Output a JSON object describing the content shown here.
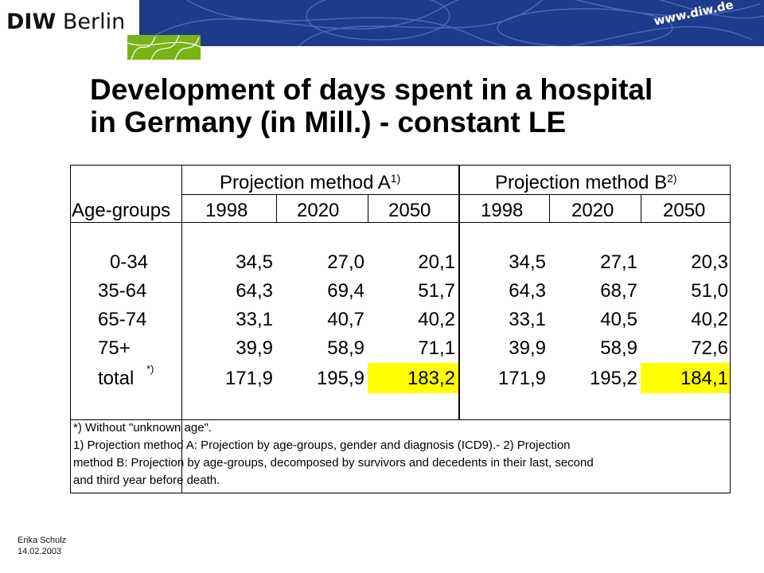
{
  "brand": {
    "logo_bold": "DIW",
    "logo_rest": " Berlin",
    "url": "www.diw.de"
  },
  "title": {
    "line1": "Development of days spent in a hospital",
    "line2": "in Germany (in Mill.) - constant LE"
  },
  "table": {
    "method_a": {
      "label": "Projection method A",
      "sup": "1)"
    },
    "method_b": {
      "label": "Projection method B",
      "sup": "2)"
    },
    "row_header": "Age-groups",
    "years": [
      "1998",
      "2020",
      "2050",
      "1998",
      "2020",
      "2050"
    ],
    "rows": [
      {
        "label": "0-34",
        "values": [
          "34,5",
          "27,0",
          "20,1",
          "34,5",
          "27,1",
          "20,3"
        ]
      },
      {
        "label": "35-64",
        "values": [
          "64,3",
          "69,4",
          "51,7",
          "64,3",
          "68,7",
          "51,0"
        ]
      },
      {
        "label": "65-74",
        "values": [
          "33,1",
          "40,7",
          "40,2",
          "33,1",
          "40,5",
          "40,2"
        ]
      },
      {
        "label": "75+",
        "values": [
          "39,9",
          "58,9",
          "71,1",
          "39,9",
          "58,9",
          "72,6"
        ]
      },
      {
        "label": "total",
        "label_sup": "*)",
        "values": [
          "171,9",
          "195,9",
          "183,2",
          "171,9",
          "195,2",
          "184,1"
        ]
      }
    ],
    "highlight_color": "#ffff00"
  },
  "notes": [
    "*) Without \"unknown age\".",
    "1) Projection method A: Projection by age-groups, gender and  diagnosis (ICD9).-  2) Projection",
    "method B: Projection by age-groups, decomposed by survivors and decedents in their last, second",
    "and third year before death."
  ],
  "footer": {
    "author": "Erika Schulz",
    "date": "14.02.2003"
  },
  "colors": {
    "banner": "#1e3a8a",
    "green": "#7ab317"
  }
}
